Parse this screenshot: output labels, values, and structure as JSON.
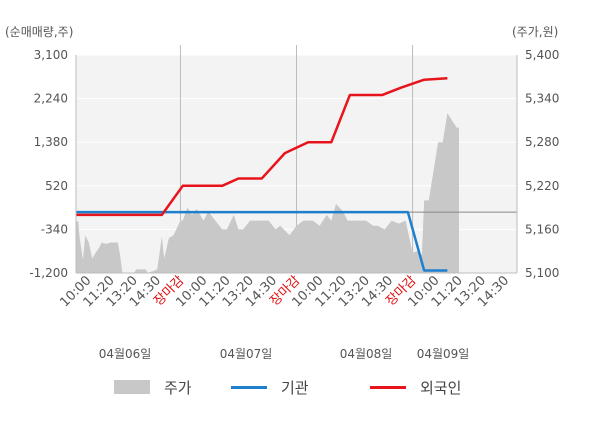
{
  "chart_data": {
    "type": "line",
    "left_axis_unit": "(순매매량,주)",
    "right_axis_unit": "(주가,원)",
    "y_left": {
      "min": -1200,
      "max": 3100,
      "ticks": [
        3100,
        2240,
        1380,
        520,
        -340,
        -1200
      ],
      "tick_labels": [
        "3,100",
        "2,240",
        "1,380",
        "520",
        "-340",
        "-1,200"
      ]
    },
    "y_right": {
      "min": 5100,
      "max": 5400,
      "ticks": [
        5400,
        5340,
        5280,
        5220,
        5160,
        5100
      ],
      "tick_labels": [
        "5,400",
        "5,340",
        "5,280",
        "5,220",
        "5,160",
        "5,100"
      ]
    },
    "x_tick_labels": [
      {
        "text": "10:00",
        "red": false
      },
      {
        "text": "11:20",
        "red": false
      },
      {
        "text": "13:20",
        "red": false
      },
      {
        "text": "14:30",
        "red": false
      },
      {
        "text": "장마감",
        "red": true
      },
      {
        "text": "10:00",
        "red": false
      },
      {
        "text": "11:20",
        "red": false
      },
      {
        "text": "13:20",
        "red": false
      },
      {
        "text": "14:30",
        "red": false
      },
      {
        "text": "장마감",
        "red": true
      },
      {
        "text": "10:00",
        "red": false
      },
      {
        "text": "11:20",
        "red": false
      },
      {
        "text": "13:20",
        "red": false
      },
      {
        "text": "14:30",
        "red": false
      },
      {
        "text": "장마감",
        "red": true
      },
      {
        "text": "10:00",
        "red": false
      },
      {
        "text": "11:20",
        "red": false
      },
      {
        "text": "13:20",
        "red": false
      },
      {
        "text": "14:30",
        "red": false
      }
    ],
    "dates": [
      "04월06일",
      "04월07일",
      "04월08일",
      "04월09일"
    ],
    "n_slots": 19,
    "series": [
      {
        "name": "주가",
        "kind": "area",
        "axis": "right",
        "color": "#c8c8c8",
        "points": [
          [
            0,
            5171
          ],
          [
            0.1,
            5171
          ],
          [
            0.15,
            5150
          ],
          [
            0.3,
            5118
          ],
          [
            0.4,
            5152
          ],
          [
            0.55,
            5142
          ],
          [
            0.7,
            5120
          ],
          [
            0.85,
            5128
          ],
          [
            1.0,
            5135
          ],
          [
            1.1,
            5142
          ],
          [
            1.3,
            5140
          ],
          [
            1.5,
            5142
          ],
          [
            1.8,
            5142
          ],
          [
            1.9,
            5125
          ],
          [
            2.0,
            5100
          ],
          [
            2.5,
            5100
          ],
          [
            2.6,
            5105
          ],
          [
            3.0,
            5105
          ],
          [
            3.1,
            5100
          ],
          [
            3.5,
            5105
          ],
          [
            3.7,
            5150
          ],
          [
            3.8,
            5120
          ],
          [
            4.0,
            5148
          ],
          [
            4.2,
            5152
          ],
          [
            4.5,
            5172
          ],
          [
            4.6,
            5172
          ],
          [
            4.8,
            5190
          ],
          [
            5.0,
            5180
          ],
          [
            5.2,
            5188
          ],
          [
            5.5,
            5172
          ],
          [
            5.7,
            5185
          ],
          [
            6.0,
            5172
          ],
          [
            6.3,
            5160
          ],
          [
            6.5,
            5160
          ],
          [
            6.8,
            5180
          ],
          [
            7.0,
            5160
          ],
          [
            7.2,
            5160
          ],
          [
            7.5,
            5172
          ],
          [
            7.8,
            5172
          ],
          [
            8.0,
            5172
          ],
          [
            8.3,
            5172
          ],
          [
            8.6,
            5160
          ],
          [
            8.8,
            5165
          ],
          [
            9.2,
            5152
          ],
          [
            9.5,
            5165
          ],
          [
            9.8,
            5172
          ],
          [
            10.2,
            5172
          ],
          [
            10.5,
            5165
          ],
          [
            10.8,
            5180
          ],
          [
            11.0,
            5172
          ],
          [
            11.2,
            5195
          ],
          [
            11.5,
            5185
          ],
          [
            11.7,
            5172
          ],
          [
            12.0,
            5172
          ],
          [
            12.5,
            5172
          ],
          [
            12.8,
            5165
          ],
          [
            13.0,
            5165
          ],
          [
            13.3,
            5160
          ],
          [
            13.6,
            5172
          ],
          [
            13.9,
            5168
          ],
          [
            14.2,
            5172
          ],
          [
            14.5,
            5128
          ],
          [
            14.7,
            5130
          ],
          [
            14.9,
            5125
          ],
          [
            15.0,
            5200
          ],
          [
            15.2,
            5200
          ],
          [
            15.5,
            5260
          ],
          [
            15.6,
            5280
          ],
          [
            15.8,
            5280
          ],
          [
            16.0,
            5320
          ],
          [
            16.2,
            5310
          ],
          [
            16.4,
            5300
          ],
          [
            16.5,
            5300
          ]
        ]
      },
      {
        "name": "기관",
        "kind": "line",
        "axis": "left",
        "color": "#1e7fcd",
        "points": [
          [
            0,
            0
          ],
          [
            14.3,
            0
          ],
          [
            15.0,
            -1150
          ],
          [
            16.0,
            -1150
          ]
        ]
      },
      {
        "name": "외국인",
        "kind": "line",
        "axis": "right",
        "color": "#e8141b",
        "points": [
          [
            0,
            5180
          ],
          [
            2.5,
            5180
          ],
          [
            3.7,
            5180
          ],
          [
            4.6,
            5220
          ],
          [
            6.3,
            5220
          ],
          [
            7.0,
            5230
          ],
          [
            8.0,
            5230
          ],
          [
            9.0,
            5265
          ],
          [
            10.0,
            5280
          ],
          [
            11.0,
            5280
          ],
          [
            11.8,
            5345
          ],
          [
            13.2,
            5345
          ],
          [
            14.0,
            5355
          ],
          [
            15.0,
            5366
          ],
          [
            16.0,
            5368
          ]
        ]
      }
    ]
  },
  "legend": [
    {
      "label": "주가",
      "color": "#c8c8c8",
      "kind": "box"
    },
    {
      "label": "기관",
      "color": "#1e7fcd",
      "kind": "line"
    },
    {
      "label": "외국인",
      "color": "#e8141b",
      "kind": "line"
    }
  ]
}
